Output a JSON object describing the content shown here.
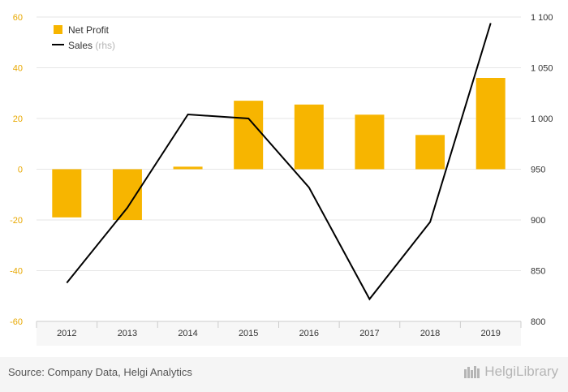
{
  "chart_data": {
    "type": "bar",
    "categories": [
      "2012",
      "2013",
      "2014",
      "2015",
      "2016",
      "2017",
      "2018",
      "2019"
    ],
    "series": [
      {
        "name": "Net Profit",
        "type": "bar",
        "axis": "left",
        "values": [
          -19,
          -20,
          1,
          27,
          25.5,
          21.5,
          13.5,
          36
        ]
      },
      {
        "name": "Sales",
        "legend_suffix": "(rhs)",
        "type": "line",
        "axis": "right",
        "values": [
          838,
          912,
          1004,
          1000,
          932,
          822,
          898,
          1094
        ]
      }
    ],
    "y_left": {
      "min": -60,
      "max": 60,
      "ticks": [
        "60",
        "40",
        "20",
        "0",
        "-20",
        "-40",
        "-60"
      ]
    },
    "y_right": {
      "min": 800,
      "max": 1100,
      "ticks": [
        "1 100",
        "1 050",
        "1 000",
        "950",
        "900",
        "850",
        "800"
      ]
    },
    "legend_position": "top-left",
    "colors": {
      "bar": "#f7b500",
      "line": "#000000",
      "left_axis_text": "#e8a800",
      "grid": "#e6e6e6"
    }
  },
  "footer": {
    "source": "Source: Company Data, Helgi Analytics",
    "brand": "HelgiLibrary"
  }
}
